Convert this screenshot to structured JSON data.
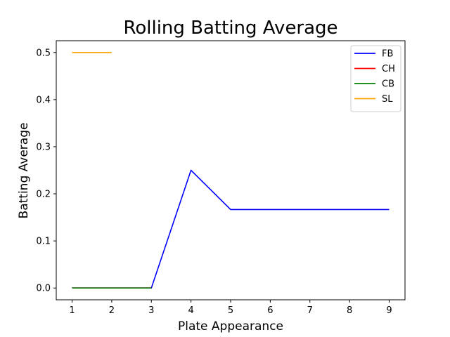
{
  "chart_data": {
    "type": "line",
    "title": "Rolling Batting Average",
    "xlabel": "Plate Appearance",
    "ylabel": "Batting Average",
    "xlim": [
      0.6,
      9.4
    ],
    "ylim": [
      -0.025,
      0.525
    ],
    "xticks": [
      1,
      2,
      3,
      4,
      5,
      6,
      7,
      8,
      9
    ],
    "xtick_labels": [
      "1",
      "2",
      "3",
      "4",
      "5",
      "6",
      "7",
      "8",
      "9"
    ],
    "yticks": [
      0.0,
      0.1,
      0.2,
      0.3,
      0.4,
      0.5
    ],
    "ytick_labels": [
      "0.0",
      "0.1",
      "0.2",
      "0.3",
      "0.4",
      "0.5"
    ],
    "grid": false,
    "legend_position": "top-right",
    "series": [
      {
        "name": "FB",
        "color": "#0000ff",
        "x": [
          1,
          2,
          3,
          4,
          5,
          6,
          7,
          8,
          9
        ],
        "y": [
          0.0,
          0.0,
          0.0,
          0.25,
          0.1667,
          0.1667,
          0.1667,
          0.1667,
          0.1667
        ]
      },
      {
        "name": "CH",
        "color": "#ff0000",
        "x": [
          1,
          2,
          3
        ],
        "y": [
          0.0,
          0.0,
          0.0
        ]
      },
      {
        "name": "CB",
        "color": "#008000",
        "x": [
          1,
          2,
          3
        ],
        "y": [
          0.0,
          0.0,
          0.0
        ]
      },
      {
        "name": "SL",
        "color": "#ffa500",
        "x": [
          1,
          2
        ],
        "y": [
          0.5,
          0.5
        ]
      }
    ]
  }
}
